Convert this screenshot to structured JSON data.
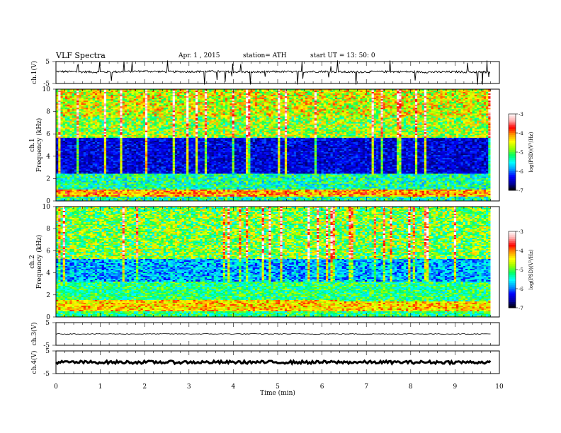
{
  "header": {
    "title": "VLF Spectra",
    "date": "Apr. 1  , 2015",
    "station": "station= ATH",
    "start": "start  UT =   13: 50: 0"
  },
  "colors": {
    "cmap": [
      "#000000",
      "#0000a0",
      "#0000ff",
      "#0099ff",
      "#00ffff",
      "#00ff66",
      "#99ff00",
      "#ffff00",
      "#ff9900",
      "#ff0000",
      "#ffaaaa",
      "#ffffff"
    ]
  },
  "chart_data": [
    {
      "type": "line",
      "panel": "ch1",
      "ylabel": "ch.1(V)",
      "ylim": [
        -5,
        5
      ],
      "yticks": [
        "5",
        "-5"
      ],
      "x": [
        0,
        0.5,
        1,
        1.5,
        2,
        2.5,
        3,
        3.5,
        4,
        4.5,
        5,
        5.5,
        6,
        6.5,
        7,
        7.5,
        8,
        8.5,
        9,
        9.5,
        9.8
      ],
      "values": [
        0.5,
        0.3,
        0.2,
        0.4,
        0.6,
        0.3,
        0.4,
        0.5,
        0.3,
        0.2,
        0.4,
        0.3,
        0.5,
        0.2,
        0.3,
        0.4,
        0.3,
        0.2,
        0.3,
        0.2,
        0.3
      ]
    },
    {
      "type": "heatmap",
      "panel": "ch1-spectrogram",
      "ylabel": "Frequency  (kHz)",
      "channel_label": "ch.1",
      "ylim": [
        0,
        10
      ],
      "yticks": [
        "0",
        "2",
        "4",
        "6",
        "8",
        "10"
      ],
      "xlim": [
        0,
        9.8
      ],
      "colorbar_label": "log(PSD)(V²/Hz)",
      "colorbar_ticks": [
        "-3",
        "-4",
        "-5",
        "-6",
        "-7"
      ],
      "clim": [
        -7,
        -3
      ]
    },
    {
      "type": "heatmap",
      "panel": "ch2-spectrogram",
      "ylabel": "Frequency  (kHz)",
      "channel_label": "ch.2",
      "ylim": [
        0,
        10
      ],
      "yticks": [
        "0",
        "2",
        "4",
        "6",
        "8",
        "10"
      ],
      "xlim": [
        0,
        9.8
      ],
      "colorbar_label": "log(PSD)(V²/Hz)",
      "colorbar_ticks": [
        "-3",
        "-4",
        "-5",
        "-6",
        "-7"
      ],
      "clim": [
        -7,
        -3
      ]
    },
    {
      "type": "line",
      "panel": "ch3",
      "ylabel": "ch.3(V)",
      "ylim": [
        -5,
        5
      ],
      "yticks": [
        "5",
        "-5"
      ],
      "x": [
        0,
        9.8
      ],
      "values": [
        0,
        0
      ]
    },
    {
      "type": "line",
      "panel": "ch4",
      "ylabel": "ch.4(V)",
      "ylim": [
        -5,
        5
      ],
      "yticks": [
        "5",
        "-5"
      ],
      "x": [
        0,
        9.8
      ],
      "values": [
        0,
        0
      ]
    }
  ],
  "xaxis": {
    "label": "Time  (min)",
    "xlim": [
      0,
      10
    ],
    "ticks": [
      "0",
      "1",
      "2",
      "3",
      "4",
      "5",
      "6",
      "7",
      "8",
      "9",
      "10"
    ]
  }
}
